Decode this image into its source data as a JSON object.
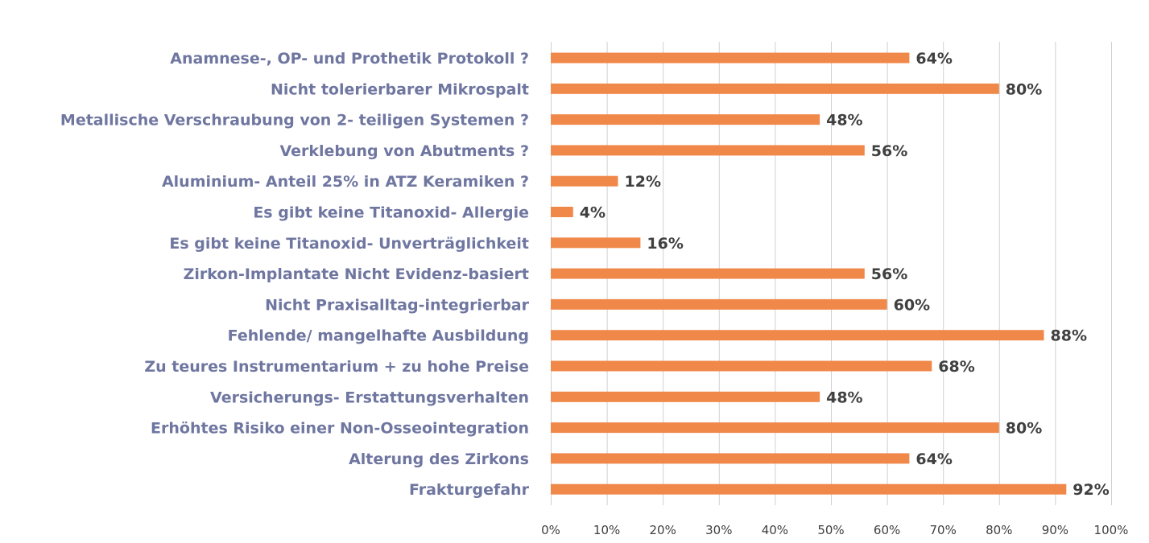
{
  "chart_data": {
    "type": "bar",
    "orientation": "horizontal",
    "title": "",
    "xlabel": "",
    "ylabel": "",
    "xlim": [
      0,
      100
    ],
    "grid": true,
    "legend": "none",
    "bar_color": "#f0884a",
    "category_label_color": "#6f76a0",
    "value_label_color": "#404040",
    "categories": [
      "Anamnese-, OP- und Prothetik Protokoll ?",
      "Nicht tolerierbarer Mikrospalt",
      "Metallische Verschraubung von 2- teiligen Systemen ?",
      "Verklebung von Abutments ?",
      "Aluminium- Anteil 25% in ATZ Keramiken ?",
      "Es gibt keine Titanoxid- Allergie",
      "Es gibt keine Titanoxid- Unverträglichkeit",
      "Zirkon-Implantate Nicht Evidenz-basiert",
      "Nicht Praxisalltag-integrierbar",
      "Fehlende/ mangelhafte Ausbildung",
      "Zu teures Instrumentarium + zu hohe Preise",
      "Versicherungs- Erstattungsverhalten",
      "Erhöhtes Risiko einer Non-Osseointegration",
      "Alterung des Zirkons",
      "Frakturgefahr"
    ],
    "values": [
      64,
      80,
      48,
      56,
      12,
      4,
      16,
      56,
      60,
      88,
      68,
      48,
      80,
      64,
      92
    ],
    "value_labels": [
      "64%",
      "80%",
      "48%",
      "56%",
      "12%",
      "4%",
      "16%",
      "56%",
      "60%",
      "88%",
      "68%",
      "48%",
      "80%",
      "64%",
      "92%"
    ],
    "ticks": [
      0,
      10,
      20,
      30,
      40,
      50,
      60,
      70,
      80,
      90,
      100
    ],
    "tick_labels": [
      "0%",
      "10%",
      "20%",
      "30%",
      "40%",
      "50%",
      "60%",
      "70%",
      "80%",
      "90%",
      "100%"
    ]
  }
}
